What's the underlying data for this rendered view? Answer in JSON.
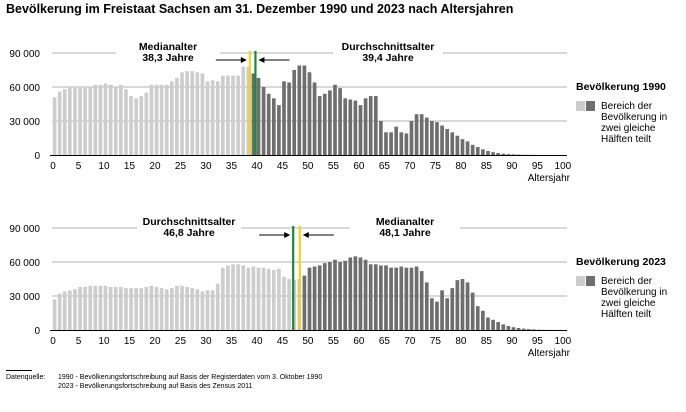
{
  "title": "Bevölkerung im Freistaat Sachsen am 31. Dezember 1990 und 2023 nach Altersjahren",
  "chart_data": [
    {
      "type": "bar",
      "legend_title": "Bevölkerung 1990",
      "legend_label": [
        "Bereich der",
        "Bevölkerung in",
        "zwei gleiche",
        "Hälften teilt"
      ],
      "xlabel": "Altersjahr",
      "ylim": [
        0,
        90000
      ],
      "yticks": [
        "0",
        "30 000",
        "60 000",
        "90 000"
      ],
      "xticks": [
        "0",
        "5",
        "10",
        "15",
        "20",
        "25",
        "30",
        "35",
        "40",
        "45",
        "50",
        "55",
        "60",
        "65",
        "70",
        "75",
        "80",
        "85",
        "90",
        "95",
        "100"
      ],
      "x": [
        0,
        1,
        2,
        3,
        4,
        5,
        6,
        7,
        8,
        9,
        10,
        11,
        12,
        13,
        14,
        15,
        16,
        17,
        18,
        19,
        20,
        21,
        22,
        23,
        24,
        25,
        26,
        27,
        28,
        29,
        30,
        31,
        32,
        33,
        34,
        35,
        36,
        37,
        38,
        39,
        40,
        41,
        42,
        43,
        44,
        45,
        46,
        47,
        48,
        49,
        50,
        51,
        52,
        53,
        54,
        55,
        56,
        57,
        58,
        59,
        60,
        61,
        62,
        63,
        64,
        65,
        66,
        67,
        68,
        69,
        70,
        71,
        72,
        73,
        74,
        75,
        76,
        77,
        78,
        79,
        80,
        81,
        82,
        83,
        84,
        85,
        86,
        87,
        88,
        89,
        90,
        91,
        92,
        93,
        94,
        95,
        96,
        97,
        98,
        99,
        100
      ],
      "values": [
        51000,
        56000,
        58000,
        60000,
        59000,
        60000,
        59000,
        60000,
        62000,
        62000,
        63000,
        62000,
        60000,
        62000,
        58000,
        52000,
        50000,
        52000,
        55000,
        62000,
        62000,
        62000,
        62000,
        65000,
        68000,
        73000,
        74000,
        74000,
        73000,
        72000,
        65000,
        66000,
        65000,
        70000,
        70000,
        70000,
        70000,
        78000,
        78000,
        72000,
        68000,
        60000,
        54000,
        50000,
        44000,
        65000,
        64000,
        75000,
        79000,
        79000,
        73000,
        64000,
        52000,
        54000,
        57000,
        62000,
        59000,
        50000,
        49000,
        48000,
        44000,
        50000,
        52000,
        52000,
        30000,
        20000,
        20000,
        25000,
        20000,
        19000,
        30000,
        36000,
        36000,
        33000,
        30000,
        29000,
        26000,
        23000,
        20000,
        17000,
        14000,
        12000,
        9000,
        7000,
        5000,
        3500,
        2500,
        1800,
        1200,
        800,
        500,
        350,
        250,
        150,
        100,
        60,
        40,
        30,
        20,
        10,
        5
      ],
      "median_age": 38.3,
      "mean_age": 39.4,
      "median_label": [
        "Medianalter",
        "38,3 Jahre"
      ],
      "mean_label": [
        "Durchschnittsalter",
        "39,4 Jahre"
      ],
      "colors": {
        "young": "#cdcdcd",
        "old": "#6e6e6e",
        "median": "#f2d324",
        "mean": "#1a8a3a"
      }
    },
    {
      "type": "bar",
      "legend_title": "Bevölkerung 2023",
      "legend_label": [
        "Bereich der",
        "Bevölkerung in",
        "zwei gleiche",
        "Hälften teilt"
      ],
      "xlabel": "Altersjahr",
      "ylim": [
        0,
        90000
      ],
      "yticks": [
        "0",
        "30 000",
        "60 000",
        "90 000"
      ],
      "xticks": [
        "0",
        "5",
        "10",
        "15",
        "20",
        "25",
        "30",
        "35",
        "40",
        "45",
        "50",
        "55",
        "60",
        "65",
        "70",
        "75",
        "80",
        "85",
        "90",
        "95",
        "100"
      ],
      "x": [
        0,
        1,
        2,
        3,
        4,
        5,
        6,
        7,
        8,
        9,
        10,
        11,
        12,
        13,
        14,
        15,
        16,
        17,
        18,
        19,
        20,
        21,
        22,
        23,
        24,
        25,
        26,
        27,
        28,
        29,
        30,
        31,
        32,
        33,
        34,
        35,
        36,
        37,
        38,
        39,
        40,
        41,
        42,
        43,
        44,
        45,
        46,
        47,
        48,
        49,
        50,
        51,
        52,
        53,
        54,
        55,
        56,
        57,
        58,
        59,
        60,
        61,
        62,
        63,
        64,
        65,
        66,
        67,
        68,
        69,
        70,
        71,
        72,
        73,
        74,
        75,
        76,
        77,
        78,
        79,
        80,
        81,
        82,
        83,
        84,
        85,
        86,
        87,
        88,
        89,
        90,
        91,
        92,
        93,
        94,
        95,
        96,
        97,
        98,
        99,
        100
      ],
      "values": [
        27000,
        32000,
        34000,
        35000,
        36000,
        38000,
        38000,
        39000,
        39000,
        39000,
        39000,
        38000,
        38000,
        38000,
        37000,
        37000,
        37000,
        37000,
        38000,
        39000,
        38000,
        37000,
        36000,
        37000,
        39000,
        39000,
        38000,
        37000,
        36000,
        34000,
        35000,
        35000,
        41000,
        55000,
        57000,
        58000,
        58000,
        57000,
        55000,
        56000,
        55000,
        55000,
        54000,
        53000,
        54000,
        47000,
        45000,
        44000,
        45000,
        48000,
        55000,
        56000,
        57000,
        59000,
        60000,
        62000,
        60000,
        61000,
        64000,
        65000,
        64000,
        62000,
        58000,
        58000,
        57000,
        57000,
        55000,
        55000,
        56000,
        55000,
        55000,
        56000,
        52000,
        42000,
        28000,
        25000,
        35000,
        28000,
        37000,
        44000,
        45000,
        42000,
        33000,
        21000,
        17000,
        11000,
        9000,
        7000,
        5000,
        3500,
        2500,
        1800,
        1200,
        800,
        500,
        300,
        180,
        120,
        80,
        40,
        20
      ],
      "median_age": 48.1,
      "mean_age": 46.8,
      "median_label": [
        "Medianalter",
        "48,1 Jahre"
      ],
      "mean_label": [
        "Durchschnittsalter",
        "46,8 Jahre"
      ],
      "colors": {
        "young": "#cdcdcd",
        "old": "#6e6e6e",
        "median": "#f2d324",
        "mean": "#1a8a3a"
      }
    }
  ],
  "source": {
    "label": "Datenquelle:",
    "line1": "1990 - Bevölkerungsfortschreibung  auf Basis der Registerdaten  vom 3. Oktober 1990",
    "line2": "2023 - Bevölkerungsfortschreibung  auf Basis des Zensus 2011"
  }
}
